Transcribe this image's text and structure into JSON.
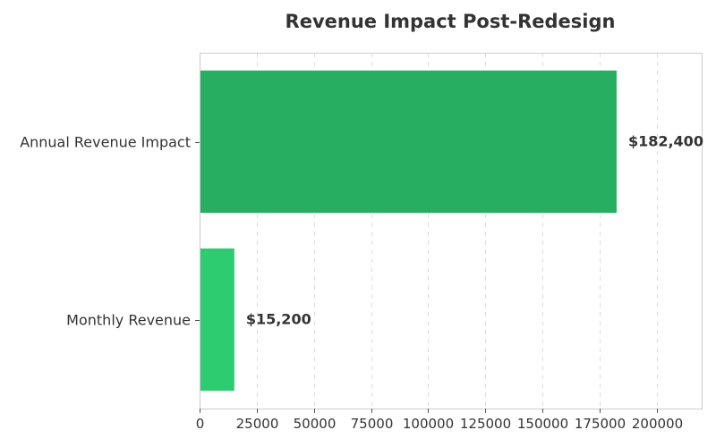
{
  "chart_data": {
    "type": "bar",
    "orientation": "horizontal",
    "title": "Revenue Impact Post-Redesign",
    "xlabel": "",
    "ylabel": "",
    "categories": [
      "Monthly Revenue",
      "Annual Revenue Impact"
    ],
    "values": [
      15200,
      182400
    ],
    "value_labels": [
      "$15,200",
      "$182,400"
    ],
    "bar_colors": [
      "#2ecc71",
      "#27ae60"
    ],
    "xlim": [
      0,
      220000
    ],
    "xticks": [
      0,
      25000,
      50000,
      75000,
      100000,
      125000,
      150000,
      175000,
      200000
    ],
    "xtick_labels": [
      "0",
      "25000",
      "50000",
      "75000",
      "100000",
      "125000",
      "150000",
      "175000",
      "200000"
    ],
    "grid": true,
    "legend": null
  }
}
